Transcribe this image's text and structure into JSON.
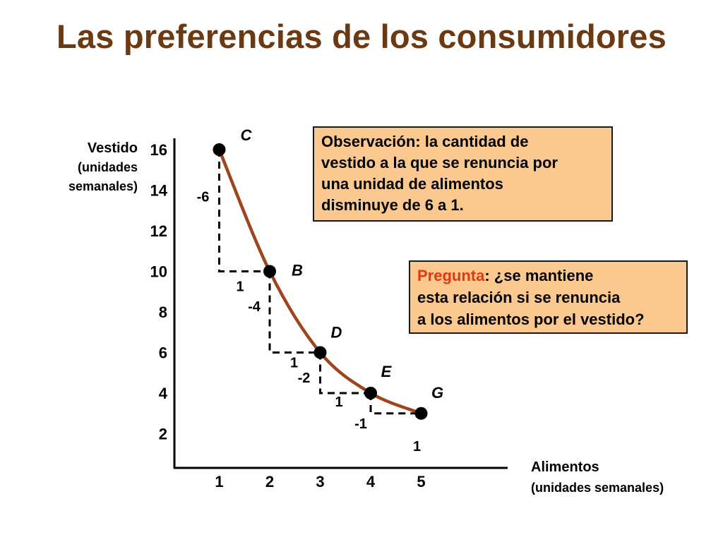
{
  "title": "Las preferencias de los consumidores",
  "colors": {
    "title": "#6b3a12",
    "curve": "#a0441c",
    "note_bg": "#fbc890",
    "question_word": "#e03a10",
    "ink": "#000000"
  },
  "chart_data": {
    "type": "line",
    "ylabel_lines": [
      "Vestido",
      "(unidades",
      "semanales)"
    ],
    "xlabel_lines": [
      "Alimentos",
      "(unidades semanales)"
    ],
    "x_ticks": [
      1,
      2,
      3,
      4,
      5
    ],
    "y_ticks": [
      2,
      4,
      6,
      8,
      10,
      12,
      14,
      16
    ],
    "points": [
      {
        "label": "C",
        "x": 1,
        "y": 16
      },
      {
        "label": "B",
        "x": 2,
        "y": 10
      },
      {
        "label": "D",
        "x": 3,
        "y": 6
      },
      {
        "label": "E",
        "x": 4,
        "y": 4
      },
      {
        "label": "G",
        "x": 5,
        "y": 3
      }
    ],
    "steps": [
      {
        "dy_label": "-6",
        "dx_label": "1"
      },
      {
        "dy_label": "-4",
        "dx_label": "1"
      },
      {
        "dy_label": "-2",
        "dx_label": "1"
      },
      {
        "dy_label": "-1",
        "dx_label": "1"
      }
    ]
  },
  "notes": {
    "observation_lines": [
      "Observación: la cantidad de",
      "vestido a la que se renuncia por",
      "una unidad de alimentos",
      "disminuye de 6 a 1."
    ],
    "question_word": "Pregunta",
    "question_lines": [
      ": ¿se mantiene",
      "esta relación si se renuncia",
      "a los alimentos por el vestido?"
    ]
  }
}
